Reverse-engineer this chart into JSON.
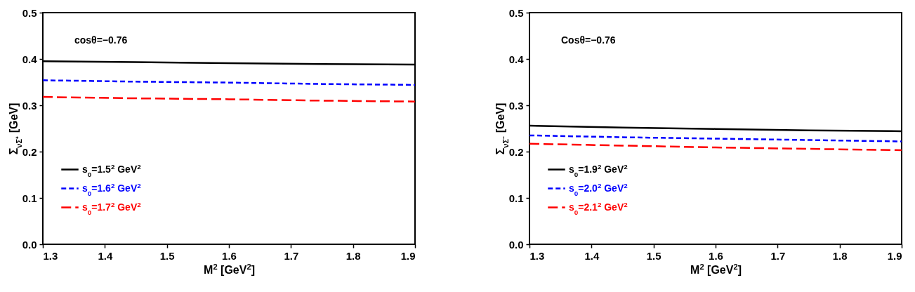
{
  "chart_data": [
    {
      "type": "line",
      "xlabel": "M$^{2}$ [GeV$^{2}$]",
      "ylabel": "Σ$_{νΣ⁺}$ [GeV]",
      "annotations": [
        "cosθ=−0.76"
      ],
      "x": [
        1.3,
        1.45,
        1.6,
        1.75,
        1.9
      ],
      "xlim": [
        1.3,
        1.9
      ],
      "xticks": [
        1.3,
        1.4,
        1.5,
        1.6,
        1.7,
        1.8,
        1.9
      ],
      "ylim": [
        0.0,
        0.5
      ],
      "yticks": [
        {
          "value": 0,
          "label": "0.0"
        },
        0.1,
        0.2,
        0.3,
        0.4,
        0.5
      ],
      "legend": "bottom left",
      "series": [
        {
          "name": "s$_{0}$=1.5$^{2}$ GeV$^{2}$",
          "color": "#000000",
          "line_style": "solid",
          "values": [
            0.395,
            0.393,
            0.391,
            0.389,
            0.388
          ]
        },
        {
          "name": "s$_{0}$=1.6$^{2}$ GeV$^{2}$",
          "color": "#0000ff",
          "line_style": "dashed",
          "values": [
            0.354,
            0.351,
            0.349,
            0.346,
            0.344
          ]
        },
        {
          "name": "s$_{0}$=1.7$^{2}$ GeV$^{2}$",
          "color": "#ff0000",
          "line_style": "dashed",
          "values": [
            0.318,
            0.315,
            0.313,
            0.31,
            0.308
          ]
        }
      ]
    },
    {
      "type": "line",
      "xlabel": "M$^{2}$ [GeV$^{2}$]",
      "ylabel": "Σ$_{νΣ⁻}$ [GeV]",
      "annotations": [
        "Cosθ=−0.76"
      ],
      "x": [
        1.3,
        1.45,
        1.6,
        1.75,
        1.9
      ],
      "xlim": [
        1.3,
        1.9
      ],
      "xticks": [
        1.3,
        1.4,
        1.5,
        1.6,
        1.7,
        1.8,
        1.9
      ],
      "ylim": [
        0.0,
        0.5
      ],
      "yticks": [
        {
          "value": 0,
          "label": "0.0"
        },
        0.1,
        0.2,
        0.3,
        0.4,
        0.5
      ],
      "legend": "bottom left",
      "series": [
        {
          "name": "s$_{0}$=1.9$^{2}$ GeV$^{2}$",
          "color": "#000000",
          "line_style": "solid",
          "values": [
            0.256,
            0.252,
            0.249,
            0.246,
            0.244
          ]
        },
        {
          "name": "s$_{0}$=2.0$^{2}$ GeV$^{2}$",
          "color": "#0000ff",
          "line_style": "dashed",
          "values": [
            0.235,
            0.231,
            0.228,
            0.225,
            0.222
          ]
        },
        {
          "name": "s$_{0}$=2.1$^{2}$ GeV$^{2}$",
          "color": "#ff0000",
          "line_style": "dashed",
          "values": [
            0.217,
            0.213,
            0.209,
            0.206,
            0.203
          ]
        }
      ]
    }
  ]
}
